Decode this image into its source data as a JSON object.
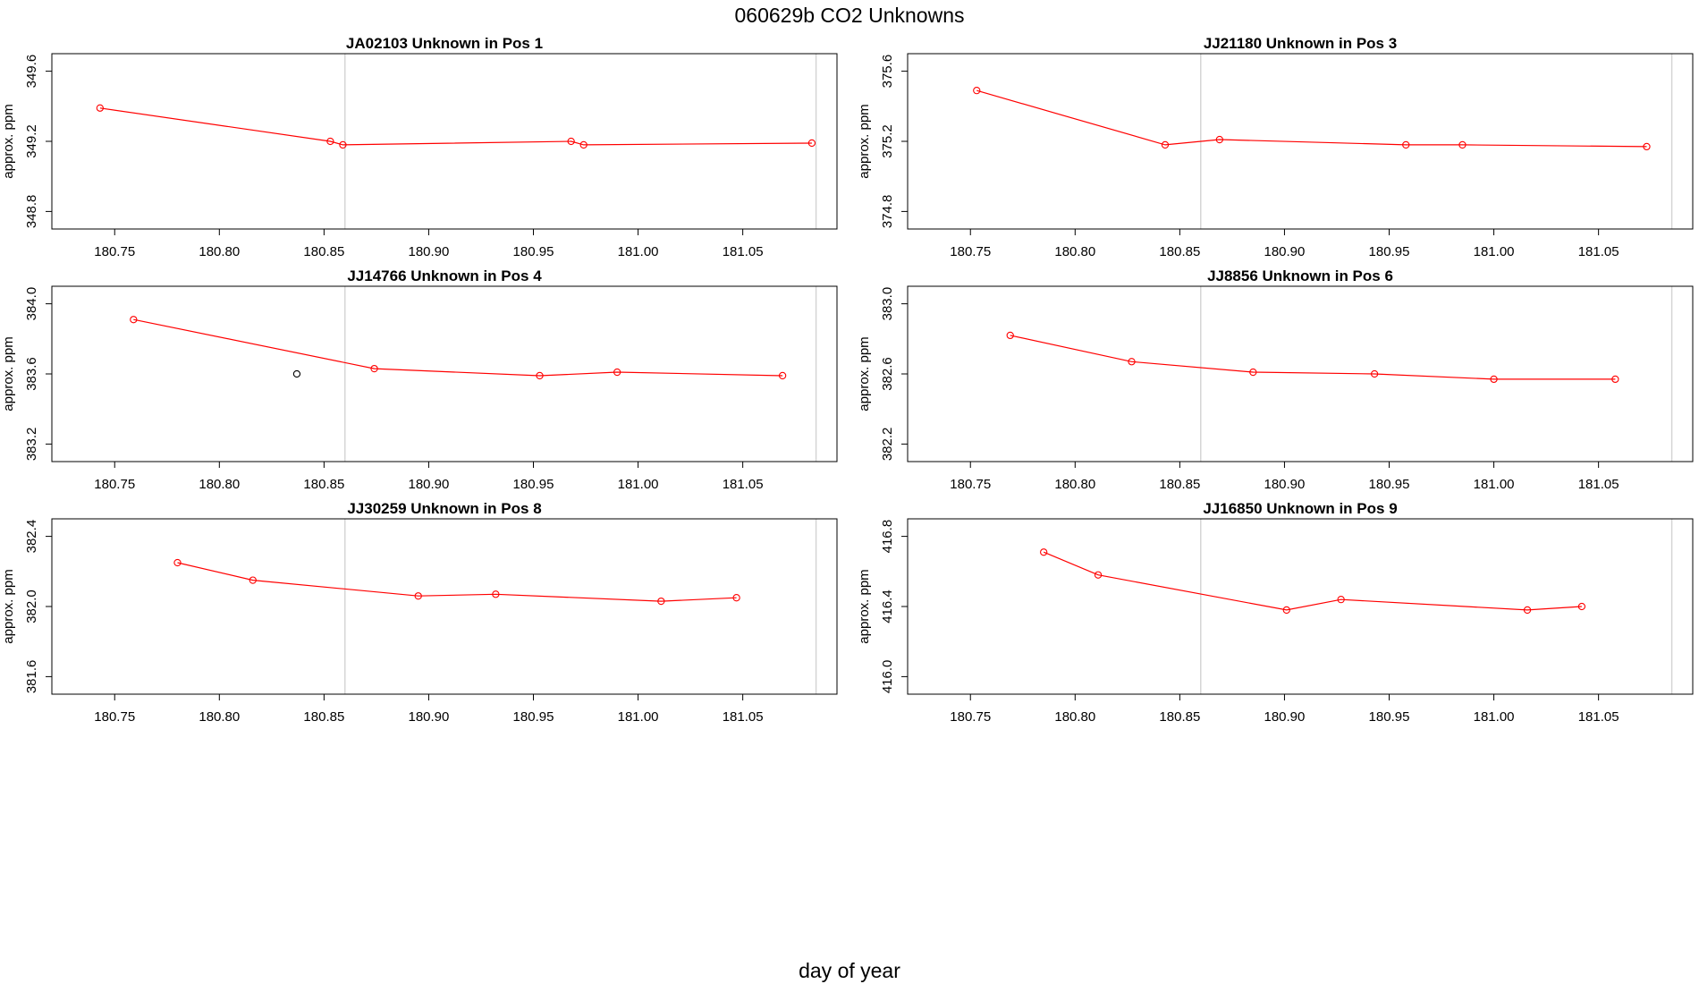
{
  "figure": {
    "title": "060629b  CO2 Unknowns",
    "xlabel": "day of year"
  },
  "chart_data": [
    {
      "type": "line",
      "title": "JA02103    Unknown in Pos 1",
      "ylabel": "approx. ppm",
      "xlim": [
        180.72,
        181.095
      ],
      "ylim": [
        348.7,
        349.7
      ],
      "xticks": [
        180.75,
        180.8,
        180.85,
        180.9,
        180.95,
        181.0,
        181.05
      ],
      "xtick_labels": [
        "180.75",
        "180.80",
        "180.85",
        "180.90",
        "180.95",
        "181.00",
        "181.05"
      ],
      "yticks": [
        348.8,
        349.2,
        349.6
      ],
      "ytick_labels": [
        "348.8",
        "349.2",
        "349.6"
      ],
      "vlines": [
        180.86,
        181.085
      ],
      "series": [
        {
          "color": "#ff0000",
          "x": [
            180.743,
            180.853,
            180.859,
            180.968,
            180.974,
            181.083
          ],
          "y": [
            349.39,
            349.2,
            349.18,
            349.2,
            349.18,
            349.19
          ]
        }
      ],
      "extra_points": []
    },
    {
      "type": "line",
      "title": "JJ21180    Unknown in Pos 3",
      "ylabel": "approx. ppm",
      "xlim": [
        180.72,
        181.095
      ],
      "ylim": [
        374.7,
        375.7
      ],
      "xticks": [
        180.75,
        180.8,
        180.85,
        180.9,
        180.95,
        181.0,
        181.05
      ],
      "xtick_labels": [
        "180.75",
        "180.80",
        "180.85",
        "180.90",
        "180.95",
        "181.00",
        "181.05"
      ],
      "yticks": [
        374.8,
        375.2,
        375.6
      ],
      "ytick_labels": [
        "374.8",
        "375.2",
        "375.6"
      ],
      "vlines": [
        180.86,
        181.085
      ],
      "series": [
        {
          "color": "#ff0000",
          "x": [
            180.753,
            180.843,
            180.869,
            180.958,
            180.985,
            181.073
          ],
          "y": [
            375.49,
            375.18,
            375.21,
            375.18,
            375.18,
            375.17
          ]
        }
      ],
      "extra_points": []
    },
    {
      "type": "line",
      "title": "JJ14766    Unknown in Pos 4",
      "ylabel": "approx. ppm",
      "xlim": [
        180.72,
        181.095
      ],
      "ylim": [
        383.1,
        384.1
      ],
      "xticks": [
        180.75,
        180.8,
        180.85,
        180.9,
        180.95,
        181.0,
        181.05
      ],
      "xtick_labels": [
        "180.75",
        "180.80",
        "180.85",
        "180.90",
        "180.95",
        "181.00",
        "181.05"
      ],
      "yticks": [
        383.2,
        383.6,
        384.0
      ],
      "ytick_labels": [
        "383.2",
        "383.6",
        "384.0"
      ],
      "vlines": [
        180.86,
        181.085
      ],
      "series": [
        {
          "color": "#ff0000",
          "x": [
            180.759,
            180.874,
            180.953,
            180.99,
            181.069
          ],
          "y": [
            383.91,
            383.63,
            383.59,
            383.61,
            383.59
          ]
        }
      ],
      "extra_points": [
        {
          "color": "#000000",
          "x": 180.837,
          "y": 383.6
        }
      ]
    },
    {
      "type": "line",
      "title": "JJ8856    Unknown in Pos 6",
      "ylabel": "approx. ppm",
      "xlim": [
        180.72,
        181.095
      ],
      "ylim": [
        382.1,
        383.1
      ],
      "xticks": [
        180.75,
        180.8,
        180.85,
        180.9,
        180.95,
        181.0,
        181.05
      ],
      "xtick_labels": [
        "180.75",
        "180.80",
        "180.85",
        "180.90",
        "180.95",
        "181.00",
        "181.05"
      ],
      "yticks": [
        382.2,
        382.6,
        383.0
      ],
      "ytick_labels": [
        "382.2",
        "382.6",
        "383.0"
      ],
      "vlines": [
        180.86,
        181.085
      ],
      "series": [
        {
          "color": "#ff0000",
          "x": [
            180.769,
            180.827,
            180.885,
            180.943,
            181.0,
            181.058
          ],
          "y": [
            382.82,
            382.67,
            382.61,
            382.6,
            382.57,
            382.57
          ]
        }
      ],
      "extra_points": []
    },
    {
      "type": "line",
      "title": "JJ30259    Unknown in Pos 8",
      "ylabel": "approx. ppm",
      "xlim": [
        180.72,
        181.095
      ],
      "ylim": [
        381.5,
        382.5
      ],
      "xticks": [
        180.75,
        180.8,
        180.85,
        180.9,
        180.95,
        181.0,
        181.05
      ],
      "xtick_labels": [
        "180.75",
        "180.80",
        "180.85",
        "180.90",
        "180.95",
        "181.00",
        "181.05"
      ],
      "yticks": [
        381.6,
        382.0,
        382.4
      ],
      "ytick_labels": [
        "381.6",
        "382.0",
        "382.4"
      ],
      "vlines": [
        180.86,
        181.085
      ],
      "series": [
        {
          "color": "#ff0000",
          "x": [
            180.78,
            180.816,
            180.895,
            180.932,
            181.011,
            181.047
          ],
          "y": [
            382.25,
            382.15,
            382.06,
            382.07,
            382.03,
            382.05
          ]
        }
      ],
      "extra_points": []
    },
    {
      "type": "line",
      "title": "JJ16850    Unknown in Pos 9",
      "ylabel": "approx. ppm",
      "xlim": [
        180.72,
        181.095
      ],
      "ylim": [
        415.9,
        416.9
      ],
      "xticks": [
        180.75,
        180.8,
        180.85,
        180.9,
        180.95,
        181.0,
        181.05
      ],
      "xtick_labels": [
        "180.75",
        "180.80",
        "180.85",
        "180.90",
        "180.95",
        "181.00",
        "181.05"
      ],
      "yticks": [
        416.0,
        416.4,
        416.8
      ],
      "ytick_labels": [
        "416.0",
        "416.4",
        "416.8"
      ],
      "vlines": [
        180.86,
        181.085
      ],
      "series": [
        {
          "color": "#ff0000",
          "x": [
            180.785,
            180.811,
            180.901,
            180.927,
            181.016,
            181.042
          ],
          "y": [
            416.71,
            416.58,
            416.38,
            416.44,
            416.38,
            416.4
          ]
        }
      ],
      "extra_points": []
    }
  ]
}
